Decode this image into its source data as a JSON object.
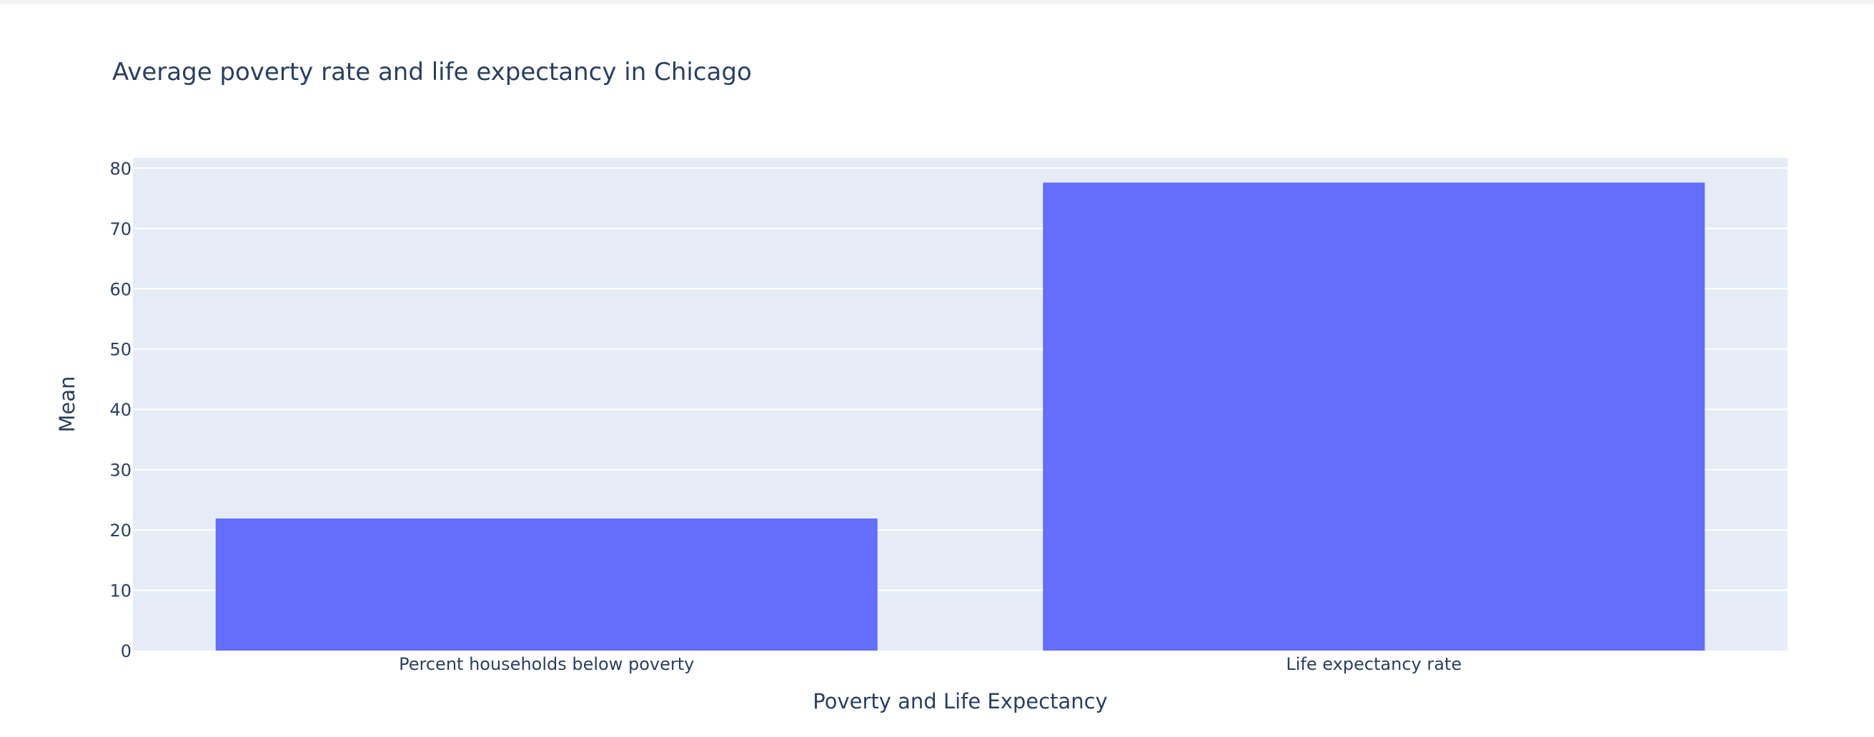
{
  "colors": {
    "plot_background": "#e5ecf6",
    "bar": "#636efa",
    "grid": "#ffffff",
    "text": "#2a3f5f"
  },
  "chart_data": {
    "type": "bar",
    "title": "Average poverty rate and life expectancy in Chicago",
    "xlabel": "Poverty and Life Expectancy",
    "ylabel": "Mean",
    "categories": [
      "Percent households below poverty",
      "Life expectancy rate"
    ],
    "values": [
      21.9,
      77.6
    ],
    "ylim": [
      0,
      81.7
    ],
    "yticks": [
      0,
      10,
      20,
      30,
      40,
      50,
      60,
      70,
      80
    ],
    "grid": true,
    "legend": "none"
  }
}
